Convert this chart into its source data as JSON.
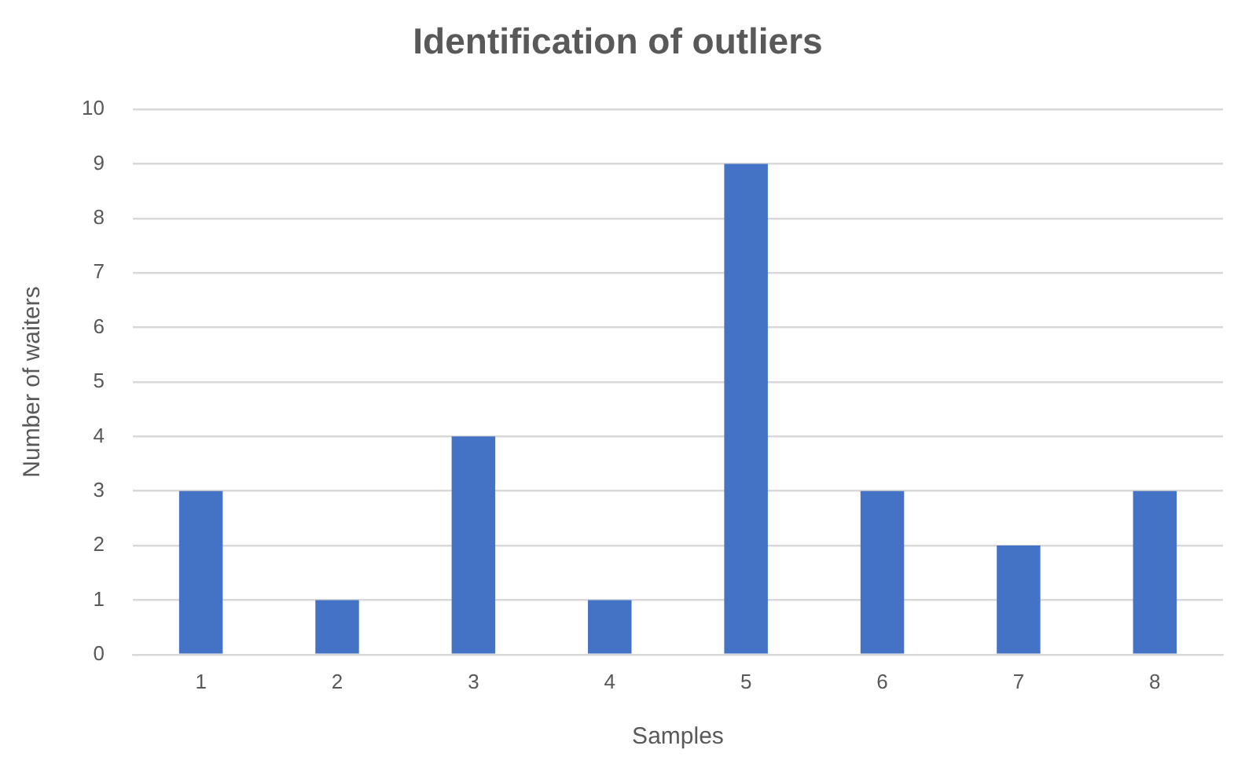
{
  "chart_data": {
    "type": "bar",
    "title": "Identification of outliers",
    "xlabel": "Samples",
    "ylabel": "Number of waiters",
    "categories": [
      "1",
      "2",
      "3",
      "4",
      "5",
      "6",
      "7",
      "8"
    ],
    "values": [
      3,
      1,
      4,
      1,
      9,
      3,
      2,
      3
    ],
    "color": "#4472c4",
    "ylim": [
      0,
      10
    ],
    "yticks": [
      0,
      1,
      2,
      3,
      4,
      5,
      6,
      7,
      8,
      9,
      10
    ],
    "grid": "y",
    "legend": false
  }
}
